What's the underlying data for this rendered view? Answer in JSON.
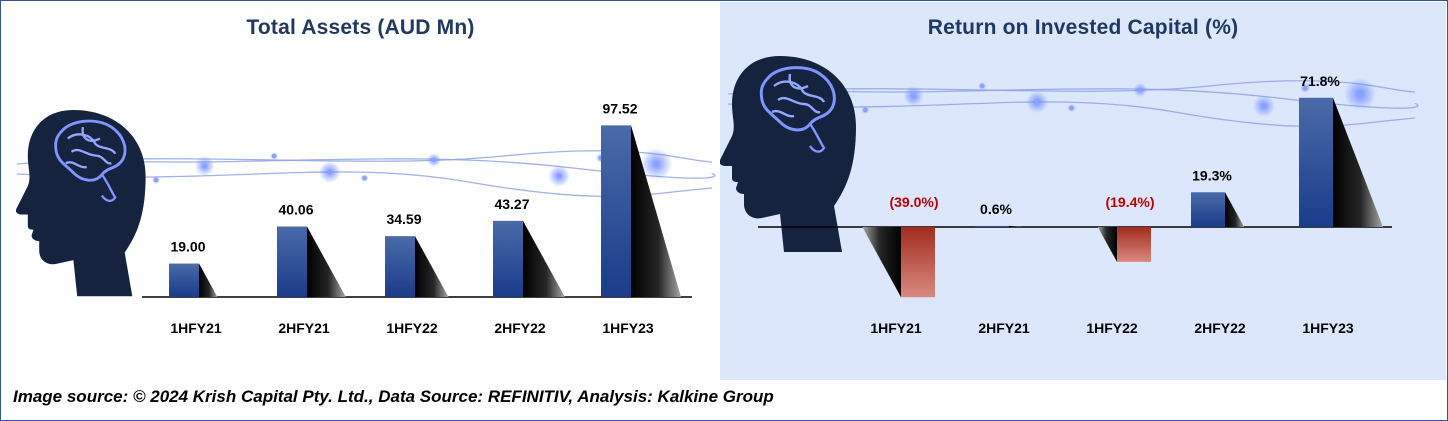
{
  "footer": "Image source: © 2024 Krish Capital Pty. Ltd., Data Source: REFINITIV, Analysis: Kalkine Group",
  "colors": {
    "bar_positive": "#2f4f9a",
    "bar_negative": "#c0504d",
    "title": "#1f3864",
    "negative_label": "#c00000",
    "right_panel_bg": "#dce7fb"
  },
  "chart_data": [
    {
      "type": "bar",
      "title": "Total Assets (AUD Mn)",
      "categories": [
        "1HFY21",
        "2HFY21",
        "1HFY22",
        "2HFY22",
        "1HFY23"
      ],
      "values": [
        19.0,
        40.06,
        34.59,
        43.27,
        97.52
      ],
      "value_labels": [
        "19.00",
        "40.06",
        "34.59",
        "43.27",
        "97.52"
      ],
      "xlabel": "",
      "ylabel": "",
      "ylim": [
        0,
        100
      ],
      "grid": false,
      "legend": "none",
      "decoration": "head-with-brain-icon"
    },
    {
      "type": "bar",
      "title": "Return on Invested Capital (%)",
      "categories": [
        "1HFY21",
        "2HFY21",
        "1HFY22",
        "2HFY22",
        "1HFY23"
      ],
      "values": [
        -39.0,
        0.6,
        -19.4,
        19.3,
        71.8
      ],
      "value_labels": [
        "(39.0%)",
        "0.6%",
        "(19.4%)",
        "19.3%",
        "71.8%"
      ],
      "xlabel": "",
      "ylabel": "",
      "ylim": [
        -40,
        75
      ],
      "grid": false,
      "legend": "none",
      "decoration": "head-with-brain-icon"
    }
  ]
}
